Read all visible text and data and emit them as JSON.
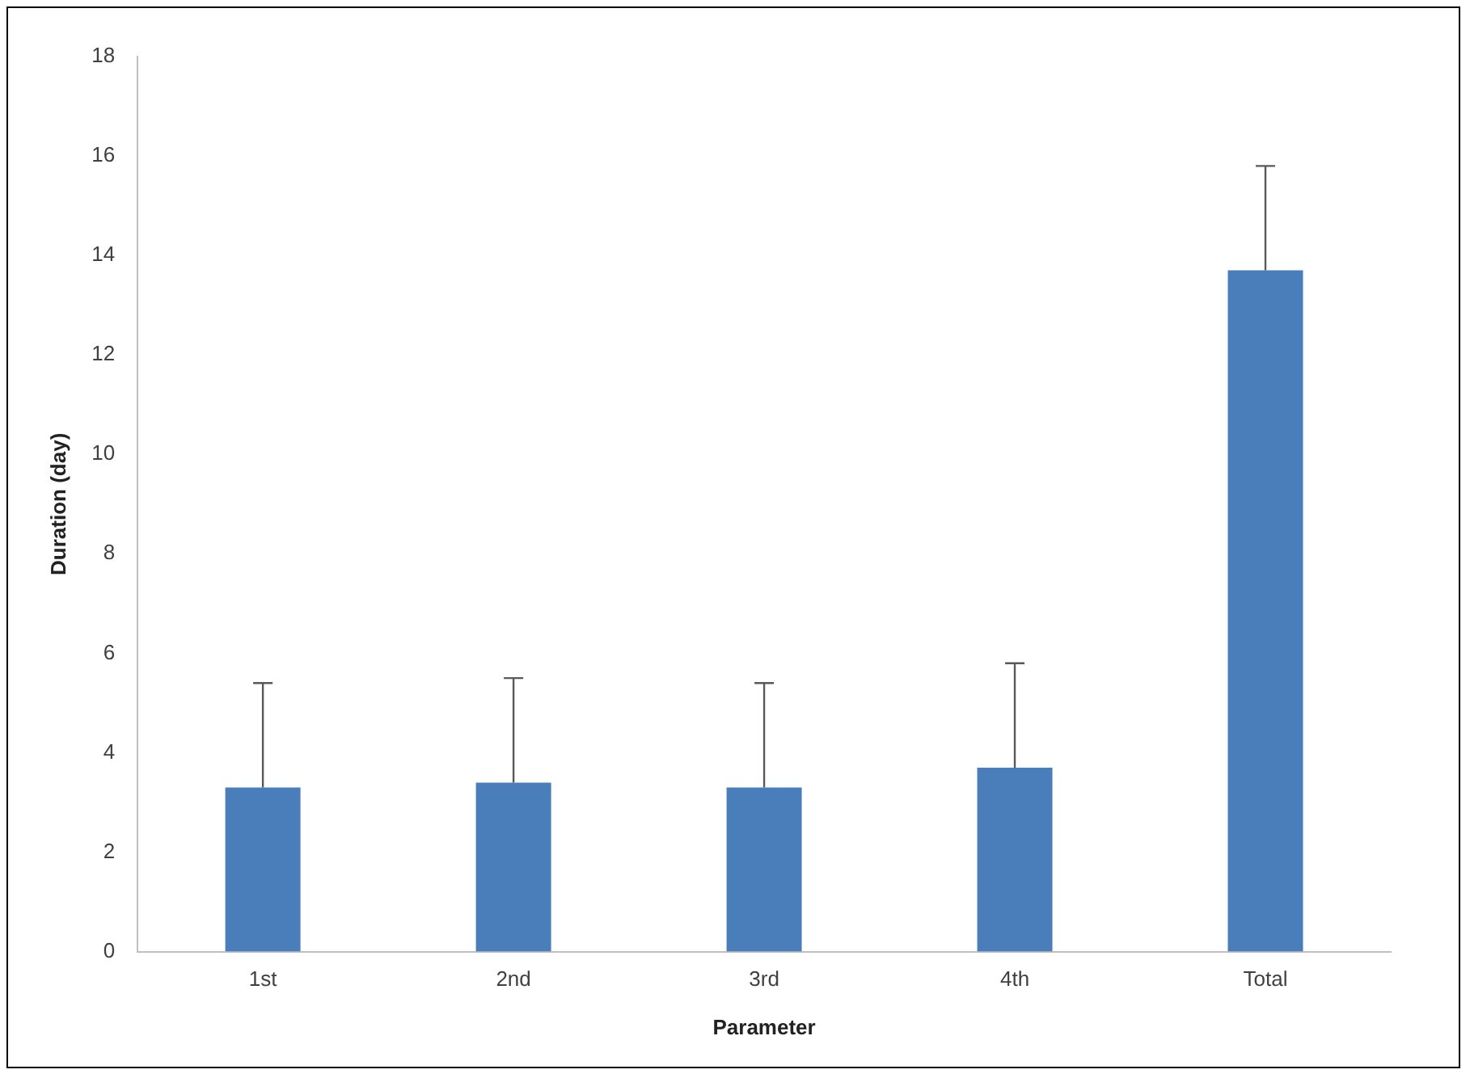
{
  "chart_data": {
    "type": "bar",
    "xlabel": "Parameter",
    "ylabel": "Duration (day)",
    "categories": [
      "1st",
      "2nd",
      "3rd",
      "4th",
      "Total"
    ],
    "values": [
      3.3,
      3.4,
      3.3,
      3.7,
      13.7
    ],
    "errors": [
      [
        3.3,
        5.4
      ],
      [
        3.4,
        5.5
      ],
      [
        3.3,
        5.4
      ],
      [
        3.7,
        5.8
      ],
      [
        13.7,
        15.8
      ]
    ],
    "color": "#4a7ebb",
    "ylim": [
      0,
      18
    ],
    "yticks": [
      0,
      2,
      4,
      6,
      8,
      10,
      12,
      14,
      16,
      18
    ],
    "grid": false,
    "legend": false
  }
}
